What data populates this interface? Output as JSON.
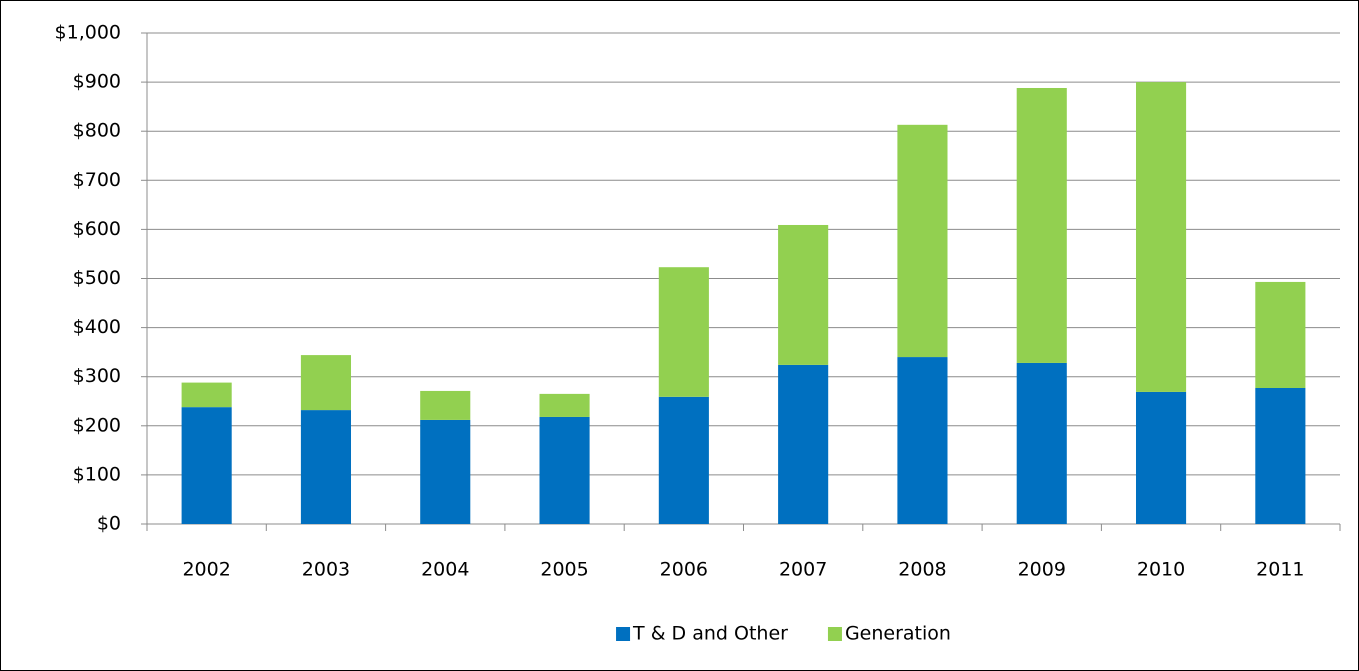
{
  "chart_data": {
    "type": "stacked_bar",
    "categories": [
      "2002",
      "2003",
      "2004",
      "2005",
      "2006",
      "2007",
      "2008",
      "2009",
      "2010",
      "2011"
    ],
    "series": [
      {
        "name": "T & D and Other",
        "color": "#0070c0",
        "values": [
          238,
          232,
          212,
          218,
          259,
          324,
          340,
          328,
          269,
          277
        ]
      },
      {
        "name": "Generation",
        "color": "#92d050",
        "values": [
          50,
          112,
          59,
          47,
          264,
          285,
          473,
          560,
          631,
          216
        ]
      }
    ],
    "ylim": [
      0,
      1000
    ],
    "yticks": [
      {
        "value": 0,
        "label": "$0"
      },
      {
        "value": 100,
        "label": "$100"
      },
      {
        "value": 200,
        "label": "$200"
      },
      {
        "value": 300,
        "label": "$300"
      },
      {
        "value": 400,
        "label": "$400"
      },
      {
        "value": 500,
        "label": "$500"
      },
      {
        "value": 600,
        "label": "$600"
      },
      {
        "value": 700,
        "label": "$700"
      },
      {
        "value": 800,
        "label": "$800"
      },
      {
        "value": 900,
        "label": "$900"
      },
      {
        "value": 1000,
        "label": "$1,000"
      }
    ],
    "grid": true,
    "legend": "bottom"
  }
}
